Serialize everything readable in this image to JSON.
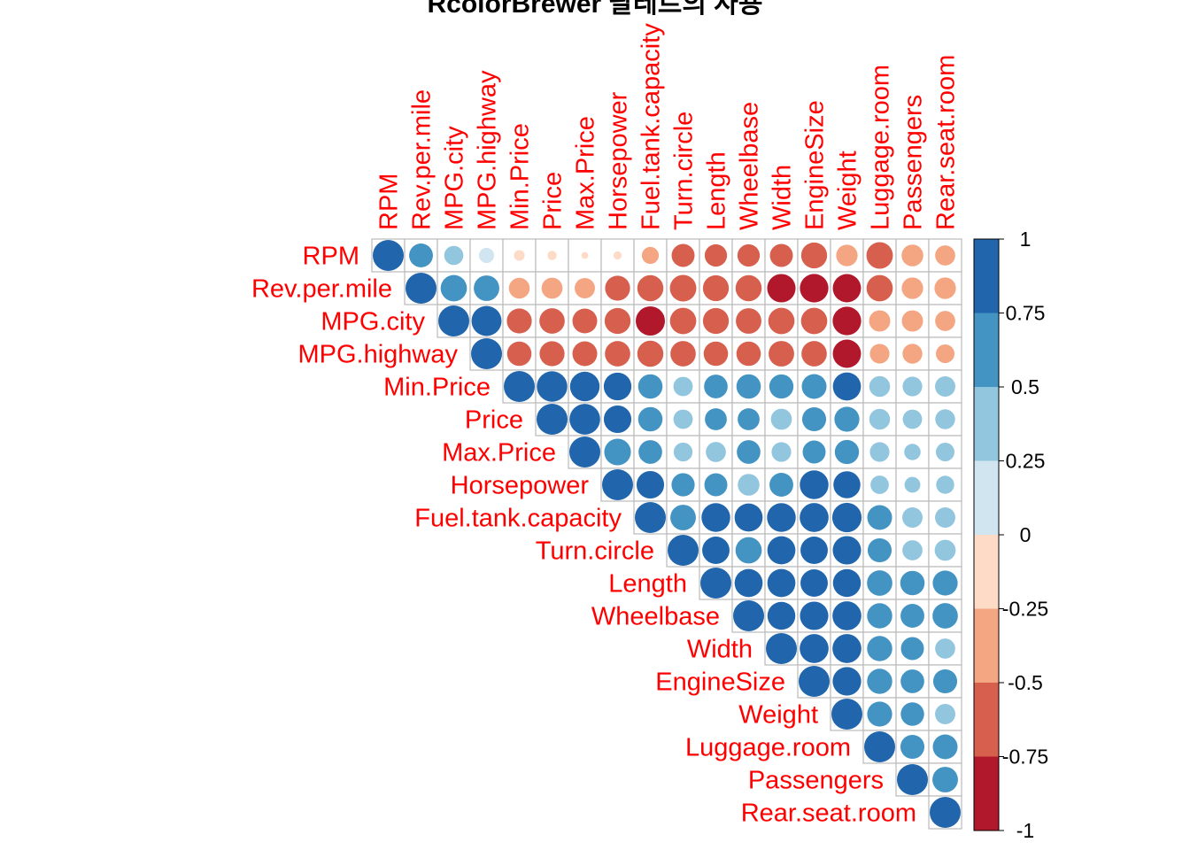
{
  "chart_data": {
    "type": "heatmap",
    "subtype": "correlation-upper-circle",
    "title": "RcolorBrewer 팔레트의 사용",
    "variables": [
      "RPM",
      "Rev.per.mile",
      "MPG.city",
      "MPG.highway",
      "Min.Price",
      "Price",
      "Max.Price",
      "Horsepower",
      "Fuel.tank.capacity",
      "Turn.circle",
      "Length",
      "Wheelbase",
      "Width",
      "EngineSize",
      "Weight",
      "Luggage.room",
      "Passengers",
      "Rear.seat.room"
    ],
    "matrix": [
      [
        1.0,
        0.59,
        0.38,
        0.24,
        -0.12,
        -0.09,
        -0.05,
        -0.07,
        -0.3,
        -0.55,
        -0.52,
        -0.52,
        -0.55,
        -0.7,
        -0.48,
        -0.73,
        -0.49,
        -0.42
      ],
      [
        0.59,
        1.0,
        0.72,
        0.68,
        -0.45,
        -0.46,
        -0.43,
        -0.65,
        -0.71,
        -0.73,
        -0.7,
        -0.71,
        -0.84,
        -0.85,
        -0.83,
        -0.72,
        -0.48,
        -0.48
      ],
      [
        0.38,
        0.72,
        1.0,
        0.94,
        -0.65,
        -0.67,
        -0.64,
        -0.7,
        -0.89,
        -0.72,
        -0.7,
        -0.68,
        -0.72,
        -0.72,
        -0.85,
        -0.47,
        -0.47,
        -0.42
      ],
      [
        0.24,
        0.68,
        0.94,
        1.0,
        -0.62,
        -0.65,
        -0.64,
        -0.67,
        -0.71,
        -0.67,
        -0.62,
        -0.62,
        -0.68,
        -0.67,
        -0.83,
        -0.4,
        -0.41,
        -0.36
      ],
      [
        -0.12,
        -0.45,
        -0.65,
        -0.62,
        1.0,
        0.97,
        0.91,
        0.8,
        0.62,
        0.39,
        0.58,
        0.62,
        0.61,
        0.64,
        0.82,
        0.45,
        0.4,
        0.43
      ],
      [
        -0.09,
        -0.46,
        -0.67,
        -0.65,
        0.97,
        1.0,
        0.98,
        0.79,
        0.62,
        0.39,
        0.5,
        0.5,
        0.46,
        0.6,
        0.65,
        0.45,
        0.39,
        0.41
      ],
      [
        -0.05,
        -0.43,
        -0.64,
        -0.64,
        0.91,
        0.98,
        1.0,
        0.74,
        0.58,
        0.37,
        0.42,
        0.58,
        0.4,
        0.55,
        0.61,
        0.4,
        0.28,
        0.36
      ],
      [
        -0.07,
        -0.65,
        -0.7,
        -0.67,
        0.8,
        0.79,
        0.74,
        1.0,
        0.79,
        0.56,
        0.55,
        0.49,
        0.59,
        0.86,
        0.76,
        0.35,
        0.26,
        0.34
      ],
      [
        -0.3,
        -0.71,
        -0.89,
        -0.71,
        0.62,
        0.62,
        0.58,
        0.79,
        1.0,
        0.68,
        0.86,
        0.82,
        0.86,
        0.87,
        0.9,
        0.64,
        0.43,
        0.43
      ],
      [
        -0.55,
        -0.73,
        -0.72,
        -0.67,
        0.39,
        0.39,
        0.37,
        0.56,
        0.68,
        1.0,
        0.78,
        0.72,
        0.82,
        0.78,
        0.84,
        0.6,
        0.42,
        0.46
      ],
      [
        -0.52,
        -0.7,
        -0.7,
        -0.62,
        0.58,
        0.5,
        0.42,
        0.55,
        0.86,
        0.78,
        1.0,
        0.82,
        0.82,
        0.78,
        0.81,
        0.67,
        0.62,
        0.65
      ],
      [
        -0.52,
        -0.71,
        -0.68,
        -0.62,
        0.62,
        0.5,
        0.58,
        0.49,
        0.82,
        0.72,
        0.82,
        1.0,
        0.81,
        0.84,
        0.87,
        0.66,
        0.59,
        0.67
      ],
      [
        -0.55,
        -0.84,
        -0.72,
        -0.68,
        0.61,
        0.46,
        0.4,
        0.59,
        0.86,
        0.82,
        0.82,
        0.81,
        1.0,
        0.87,
        0.87,
        0.66,
        0.55,
        0.42
      ],
      [
        -0.7,
        -0.85,
        -0.72,
        -0.67,
        0.64,
        0.6,
        0.55,
        0.86,
        0.87,
        0.78,
        0.78,
        0.84,
        0.87,
        1.0,
        0.85,
        0.66,
        0.58,
        0.6
      ],
      [
        -0.48,
        -0.83,
        -0.85,
        -0.83,
        0.82,
        0.65,
        0.61,
        0.76,
        0.9,
        0.84,
        0.81,
        0.87,
        0.87,
        0.85,
        1.0,
        0.65,
        0.57,
        0.43
      ],
      [
        -0.73,
        -0.72,
        -0.47,
        -0.4,
        0.45,
        0.45,
        0.4,
        0.35,
        0.64,
        0.6,
        0.67,
        0.66,
        0.66,
        0.66,
        0.65,
        1.0,
        0.6,
        0.64
      ],
      [
        -0.49,
        -0.48,
        -0.47,
        -0.41,
        0.4,
        0.39,
        0.28,
        0.26,
        0.43,
        0.42,
        0.62,
        0.59,
        0.55,
        0.58,
        0.57,
        0.6,
        1.0,
        0.68
      ],
      [
        -0.42,
        -0.48,
        -0.42,
        -0.36,
        0.43,
        0.41,
        0.36,
        0.34,
        0.43,
        0.46,
        0.65,
        0.67,
        0.42,
        0.6,
        0.43,
        0.64,
        0.68,
        1.0
      ]
    ],
    "color_scale": {
      "range": [
        -1,
        1
      ],
      "ticks": [
        "1",
        "0.75",
        "0.5",
        "0.25",
        "0",
        "-0.25",
        "-0.5",
        "-0.75",
        "-1"
      ],
      "colors_low_to_high": [
        "#b2182b",
        "#d6604d",
        "#f4a582",
        "#fddbc7",
        "#d1e5f0",
        "#92c5de",
        "#4393c3",
        "#2166ac"
      ]
    },
    "label_color": "#ff0000",
    "grid_color": "#bbbbbb"
  }
}
